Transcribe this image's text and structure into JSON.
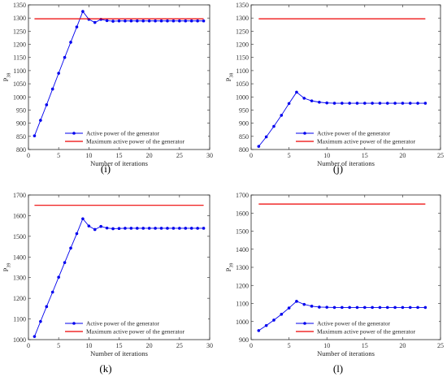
{
  "chart_data": [
    {
      "type": "line",
      "panel_label": "(i)",
      "ylabel_main": "P",
      "ylabel_sub": "38",
      "xlabel": "Number of iterations",
      "xlim": [
        0,
        30
      ],
      "ylim": [
        800,
        1350
      ],
      "xticks": [
        0,
        5,
        10,
        15,
        20,
        25,
        30
      ],
      "yticks": [
        800,
        850,
        900,
        950,
        1000,
        1050,
        1100,
        1150,
        1200,
        1250,
        1300,
        1350
      ],
      "legend_position": "bottom-right",
      "series": [
        {
          "name": "Active power of the generator",
          "color": "#0000ee",
          "marker": "circle",
          "x": [
            1,
            2,
            3,
            4,
            5,
            6,
            7,
            8,
            9,
            10,
            11,
            12,
            13,
            14,
            15,
            16,
            17,
            18,
            19,
            20,
            21,
            22,
            23,
            24,
            25,
            26,
            27,
            28,
            29
          ],
          "y": [
            852,
            911,
            970,
            1030,
            1090,
            1150,
            1208,
            1266,
            1325,
            1295,
            1283,
            1295,
            1290,
            1288,
            1289,
            1289,
            1289,
            1289,
            1289,
            1289,
            1289,
            1289,
            1289,
            1289,
            1289,
            1289,
            1289,
            1289,
            1289
          ]
        },
        {
          "name": "Maximum active power of the generator",
          "color": "#ee0000",
          "marker": "none",
          "x": [
            1,
            29
          ],
          "y": [
            1297,
            1297
          ]
        }
      ]
    },
    {
      "type": "line",
      "panel_label": "(j)",
      "ylabel_main": "P",
      "ylabel_sub": "38",
      "xlabel": "Number of iterations",
      "xlim": [
        0,
        25
      ],
      "ylim": [
        800,
        1350
      ],
      "xticks": [
        0,
        5,
        10,
        15,
        20,
        25
      ],
      "yticks": [
        800,
        850,
        900,
        950,
        1000,
        1050,
        1100,
        1150,
        1200,
        1250,
        1300,
        1350
      ],
      "legend_position": "bottom-right",
      "series": [
        {
          "name": "Active power of the generator",
          "color": "#0000ee",
          "marker": "circle",
          "x": [
            1,
            2,
            3,
            4,
            5,
            6,
            7,
            8,
            9,
            10,
            11,
            12,
            13,
            14,
            15,
            16,
            17,
            18,
            19,
            20,
            21,
            22,
            23
          ],
          "y": [
            812,
            848,
            888,
            930,
            975,
            1018,
            995,
            985,
            980,
            977,
            976,
            976,
            976,
            976,
            976,
            976,
            976,
            976,
            976,
            976,
            976,
            976,
            976
          ]
        },
        {
          "name": "Maximum active power of the generator",
          "color": "#ee0000",
          "marker": "none",
          "x": [
            1,
            23
          ],
          "y": [
            1297,
            1297
          ]
        }
      ]
    },
    {
      "type": "line",
      "panel_label": "(k)",
      "ylabel_main": "P",
      "ylabel_sub": "39",
      "xlabel": "Number of iterations",
      "xlim": [
        0,
        30
      ],
      "ylim": [
        1000,
        1700
      ],
      "xticks": [
        0,
        5,
        10,
        15,
        20,
        25,
        30
      ],
      "yticks": [
        1000,
        1100,
        1200,
        1300,
        1400,
        1500,
        1600,
        1700
      ],
      "legend_position": "bottom-right",
      "series": [
        {
          "name": "Active power of the generator",
          "color": "#0000ee",
          "marker": "circle",
          "x": [
            1,
            2,
            3,
            4,
            5,
            6,
            7,
            8,
            9,
            10,
            11,
            12,
            13,
            14,
            15,
            16,
            17,
            18,
            19,
            20,
            21,
            22,
            23,
            24,
            25,
            26,
            27,
            28,
            29
          ],
          "y": [
            1015,
            1088,
            1160,
            1230,
            1302,
            1373,
            1443,
            1513,
            1585,
            1550,
            1533,
            1548,
            1540,
            1537,
            1538,
            1539,
            1539,
            1539,
            1539,
            1539,
            1539,
            1539,
            1539,
            1539,
            1539,
            1539,
            1539,
            1539,
            1539
          ]
        },
        {
          "name": "Maximum active power of the generator",
          "color": "#ee0000",
          "marker": "none",
          "x": [
            1,
            29
          ],
          "y": [
            1650,
            1650
          ]
        }
      ]
    },
    {
      "type": "line",
      "panel_label": "(l)",
      "ylabel_main": "P",
      "ylabel_sub": "39",
      "xlabel": "Number of iterations",
      "xlim": [
        0,
        25
      ],
      "ylim": [
        900,
        1700
      ],
      "xticks": [
        0,
        5,
        10,
        15,
        20,
        25
      ],
      "yticks": [
        900,
        1000,
        1100,
        1200,
        1300,
        1400,
        1500,
        1600,
        1700
      ],
      "legend_position": "bottom-right",
      "series": [
        {
          "name": "Active power of the generator",
          "color": "#0000ee",
          "marker": "circle",
          "x": [
            1,
            2,
            3,
            4,
            5,
            6,
            7,
            8,
            9,
            10,
            11,
            12,
            13,
            14,
            15,
            16,
            17,
            18,
            19,
            20,
            21,
            22,
            23
          ],
          "y": [
            950,
            978,
            1008,
            1040,
            1075,
            1112,
            1095,
            1085,
            1080,
            1079,
            1078,
            1078,
            1078,
            1078,
            1078,
            1078,
            1078,
            1078,
            1078,
            1078,
            1078,
            1078,
            1078
          ]
        },
        {
          "name": "Maximum active power of the generator",
          "color": "#ee0000",
          "marker": "none",
          "x": [
            1,
            23
          ],
          "y": [
            1650,
            1650
          ]
        }
      ]
    }
  ]
}
